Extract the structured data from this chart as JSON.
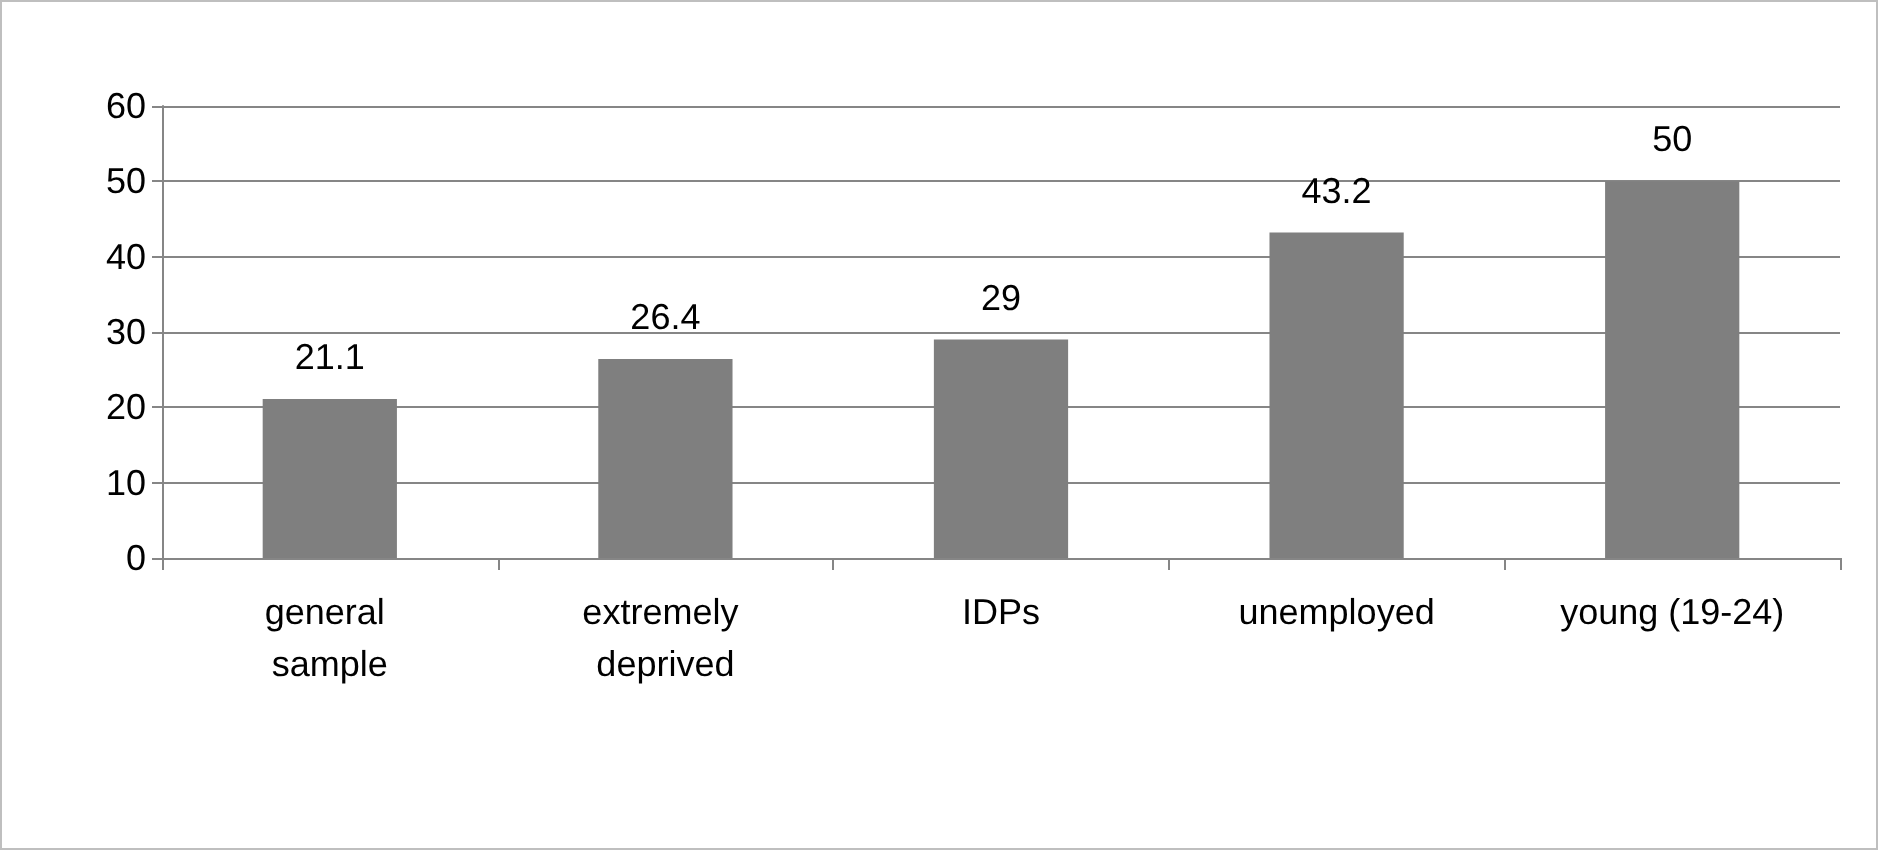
{
  "chart_data": {
    "type": "bar",
    "categories": [
      "general sample",
      "extremely deprived",
      "IDPs",
      "unemployed",
      "young (19-24)"
    ],
    "values": [
      21.1,
      26.4,
      29,
      43.2,
      50
    ],
    "color": "#7f7f7f",
    "ylim": [
      0,
      60
    ],
    "yticks": [
      0,
      10,
      20,
      30,
      40,
      50,
      60
    ],
    "grid": "y",
    "data_labels": true
  }
}
